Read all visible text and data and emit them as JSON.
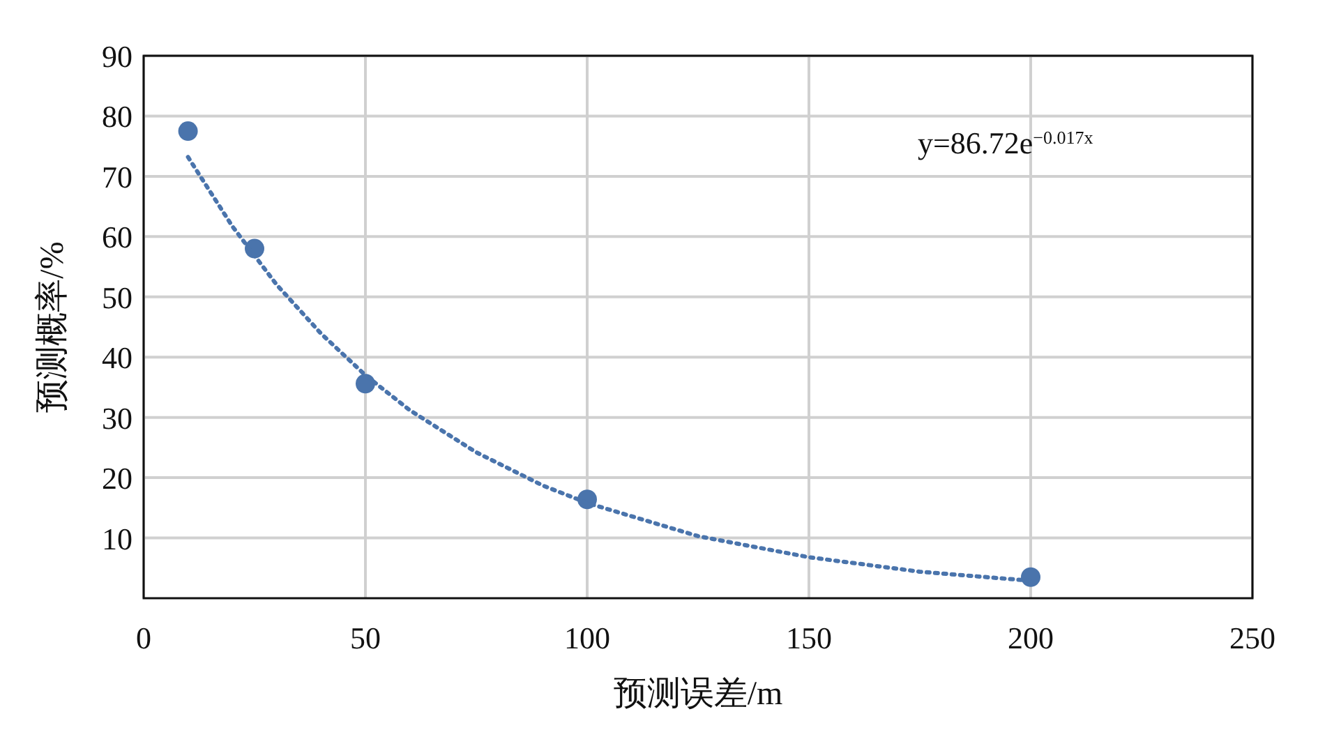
{
  "chart_data": {
    "type": "scatter",
    "xlabel": "预测误差/m",
    "ylabel": "预测概率/%",
    "xlim": [
      0,
      250
    ],
    "xticks": [
      0,
      50,
      100,
      150,
      200,
      250
    ],
    "ylim": [
      0,
      90
    ],
    "yticks": [
      10,
      20,
      30,
      40,
      50,
      60,
      70,
      80,
      90
    ],
    "grid": true,
    "annotations": [
      "y=86.72e$^{−0.017x}$"
    ],
    "series": [
      {
        "color": "#4a74ac",
        "marker": "circle",
        "x": [
          10,
          25,
          50,
          100,
          200
        ],
        "values": [
          77.5,
          58.0,
          35.6,
          16.4,
          3.5
        ]
      },
      {
        "type": "line",
        "color": "#4a74ac",
        "marker": "none",
        "line_style": "dotted",
        "x": [
          10,
          20,
          30,
          40,
          50,
          60,
          75,
          90,
          100,
          125,
          150,
          175,
          200
        ],
        "values": [
          73.2,
          61.7,
          52.0,
          43.9,
          37.0,
          31.2,
          24.2,
          18.7,
          15.8,
          10.3,
          6.8,
          4.4,
          2.9
        ]
      }
    ]
  }
}
